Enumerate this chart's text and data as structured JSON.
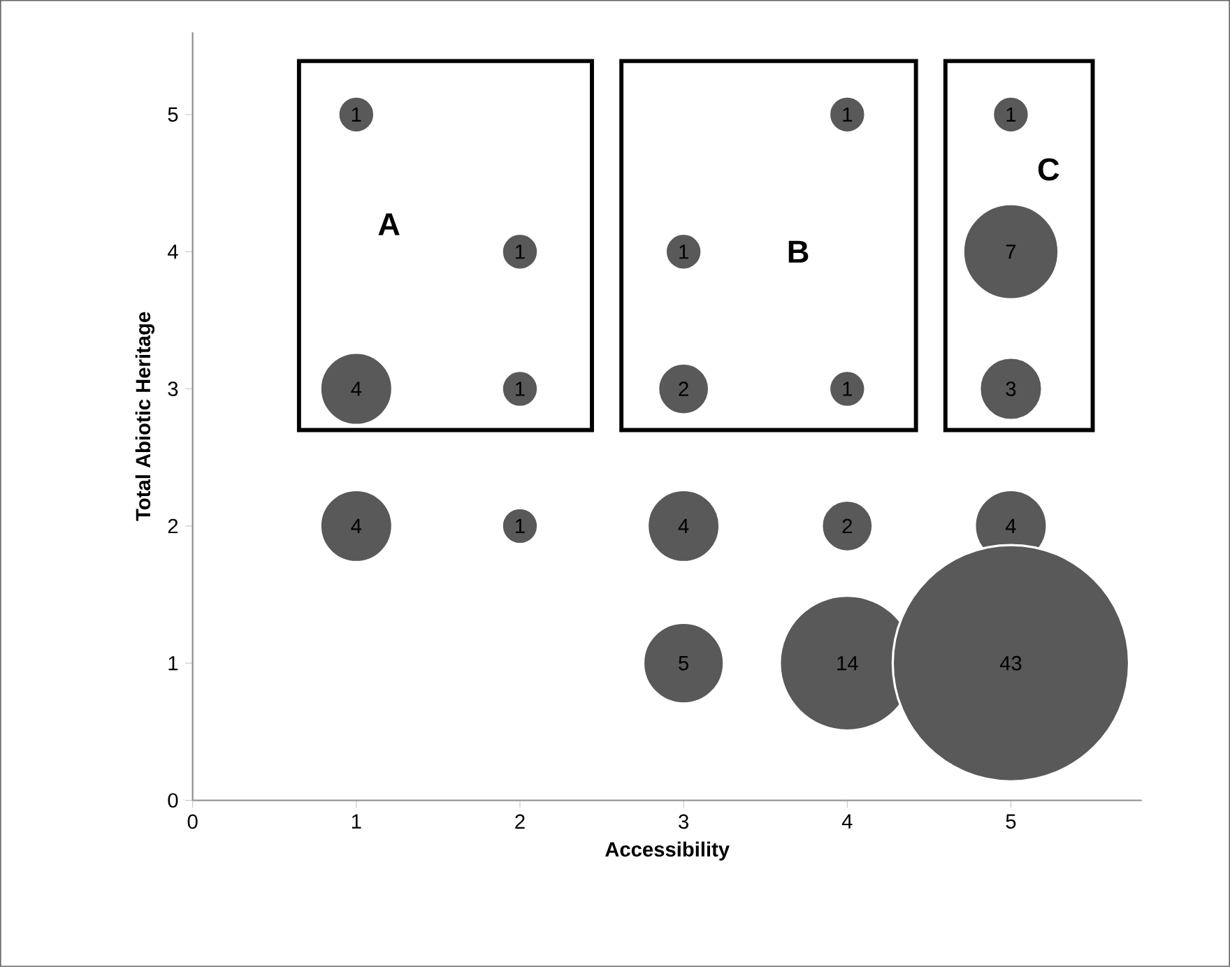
{
  "chart_data": {
    "type": "bubble",
    "xlabel": "Accessibility",
    "ylabel": "Total Abiotic Heritage",
    "x": [
      1,
      1,
      1,
      2,
      2,
      2,
      3,
      3,
      3,
      3,
      4,
      4,
      4,
      4,
      5,
      5,
      5,
      5,
      5
    ],
    "values": [
      5,
      3,
      2,
      4,
      3,
      2,
      4,
      3,
      2,
      1,
      5,
      3,
      2,
      1,
      5,
      4,
      3,
      2,
      1
    ],
    "sizes": [
      1,
      4,
      4,
      1,
      1,
      1,
      1,
      2,
      4,
      5,
      1,
      1,
      2,
      14,
      1,
      7,
      3,
      4,
      43
    ],
    "value_labels": [
      "1",
      "4",
      "4",
      "1",
      "1",
      "1",
      "1",
      "2",
      "4",
      "5",
      "1",
      "1",
      "2",
      "14",
      "1",
      "7",
      "3",
      "4",
      "43"
    ],
    "color": "#595959",
    "marker": "circle",
    "xlim": [
      0,
      5.8
    ],
    "ylim": [
      0,
      5.6
    ],
    "xticks": [
      0,
      1,
      2,
      3,
      4,
      5
    ],
    "yticks": [
      0,
      1,
      2,
      3,
      4,
      5
    ],
    "annotations": [
      "A",
      "B",
      "C"
    ]
  }
}
